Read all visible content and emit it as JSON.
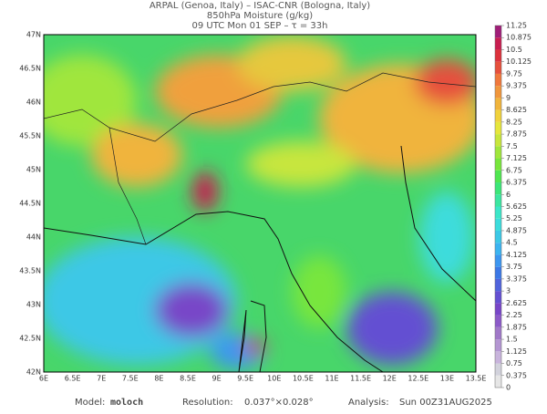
{
  "header": {
    "line1": "ARPAL (Genoa, Italy)  –  ISAC-CNR (Bologna, Italy)",
    "line2": "850hPa Moisture (g/kg)",
    "line3": "09 UTC Mon 01 SEP  –  τ = 33h"
  },
  "map": {
    "lat_labels": [
      "47N",
      "46.5N",
      "46N",
      "45.5N",
      "45N",
      "44.5N",
      "44N",
      "43.5N",
      "43N",
      "42.5N",
      "42N"
    ],
    "lon_labels": [
      "6E",
      "6.5E",
      "7E",
      "7.5E",
      "8E",
      "8.5E",
      "9E",
      "9.5E",
      "10E",
      "10.5E",
      "11E",
      "11.5E",
      "12E",
      "12.5E",
      "13E",
      "13.5E"
    ]
  },
  "colorbar": {
    "levels": [
      0,
      0.375,
      0.75,
      1.125,
      1.5,
      1.875,
      2.25,
      2.625,
      3,
      3.375,
      3.75,
      4.125,
      4.5,
      4.875,
      5.25,
      5.625,
      6,
      6.375,
      6.75,
      7.125,
      7.5,
      7.875,
      8.25,
      8.625,
      9,
      9.375,
      9.75,
      10.125,
      10.5,
      10.875,
      11.25
    ],
    "colors": [
      "#e6e6e6",
      "#d2d2dc",
      "#c8b4dc",
      "#b496d2",
      "#a078c8",
      "#8c5ac8",
      "#7846c8",
      "#6450d2",
      "#5064dc",
      "#3c78e6",
      "#3c96f0",
      "#3cb4f0",
      "#3cc8e6",
      "#3cdcdc",
      "#3ce6c8",
      "#3ce6a0",
      "#3ce678",
      "#50e650",
      "#78e63c",
      "#a0e63c",
      "#c8e63c",
      "#e6e63c",
      "#f0d23c",
      "#f0b43c",
      "#f0963c",
      "#f0783c",
      "#e6503c",
      "#dc323c",
      "#c81e50",
      "#a01e78"
    ]
  },
  "footer": {
    "model_label": "Model:",
    "model": "moloch",
    "resolution_label": "Resolution:",
    "resolution": "0.037°×0.028°",
    "analysis_label": "Analysis:",
    "analysis": "Sun 00Z31AUG2025"
  }
}
